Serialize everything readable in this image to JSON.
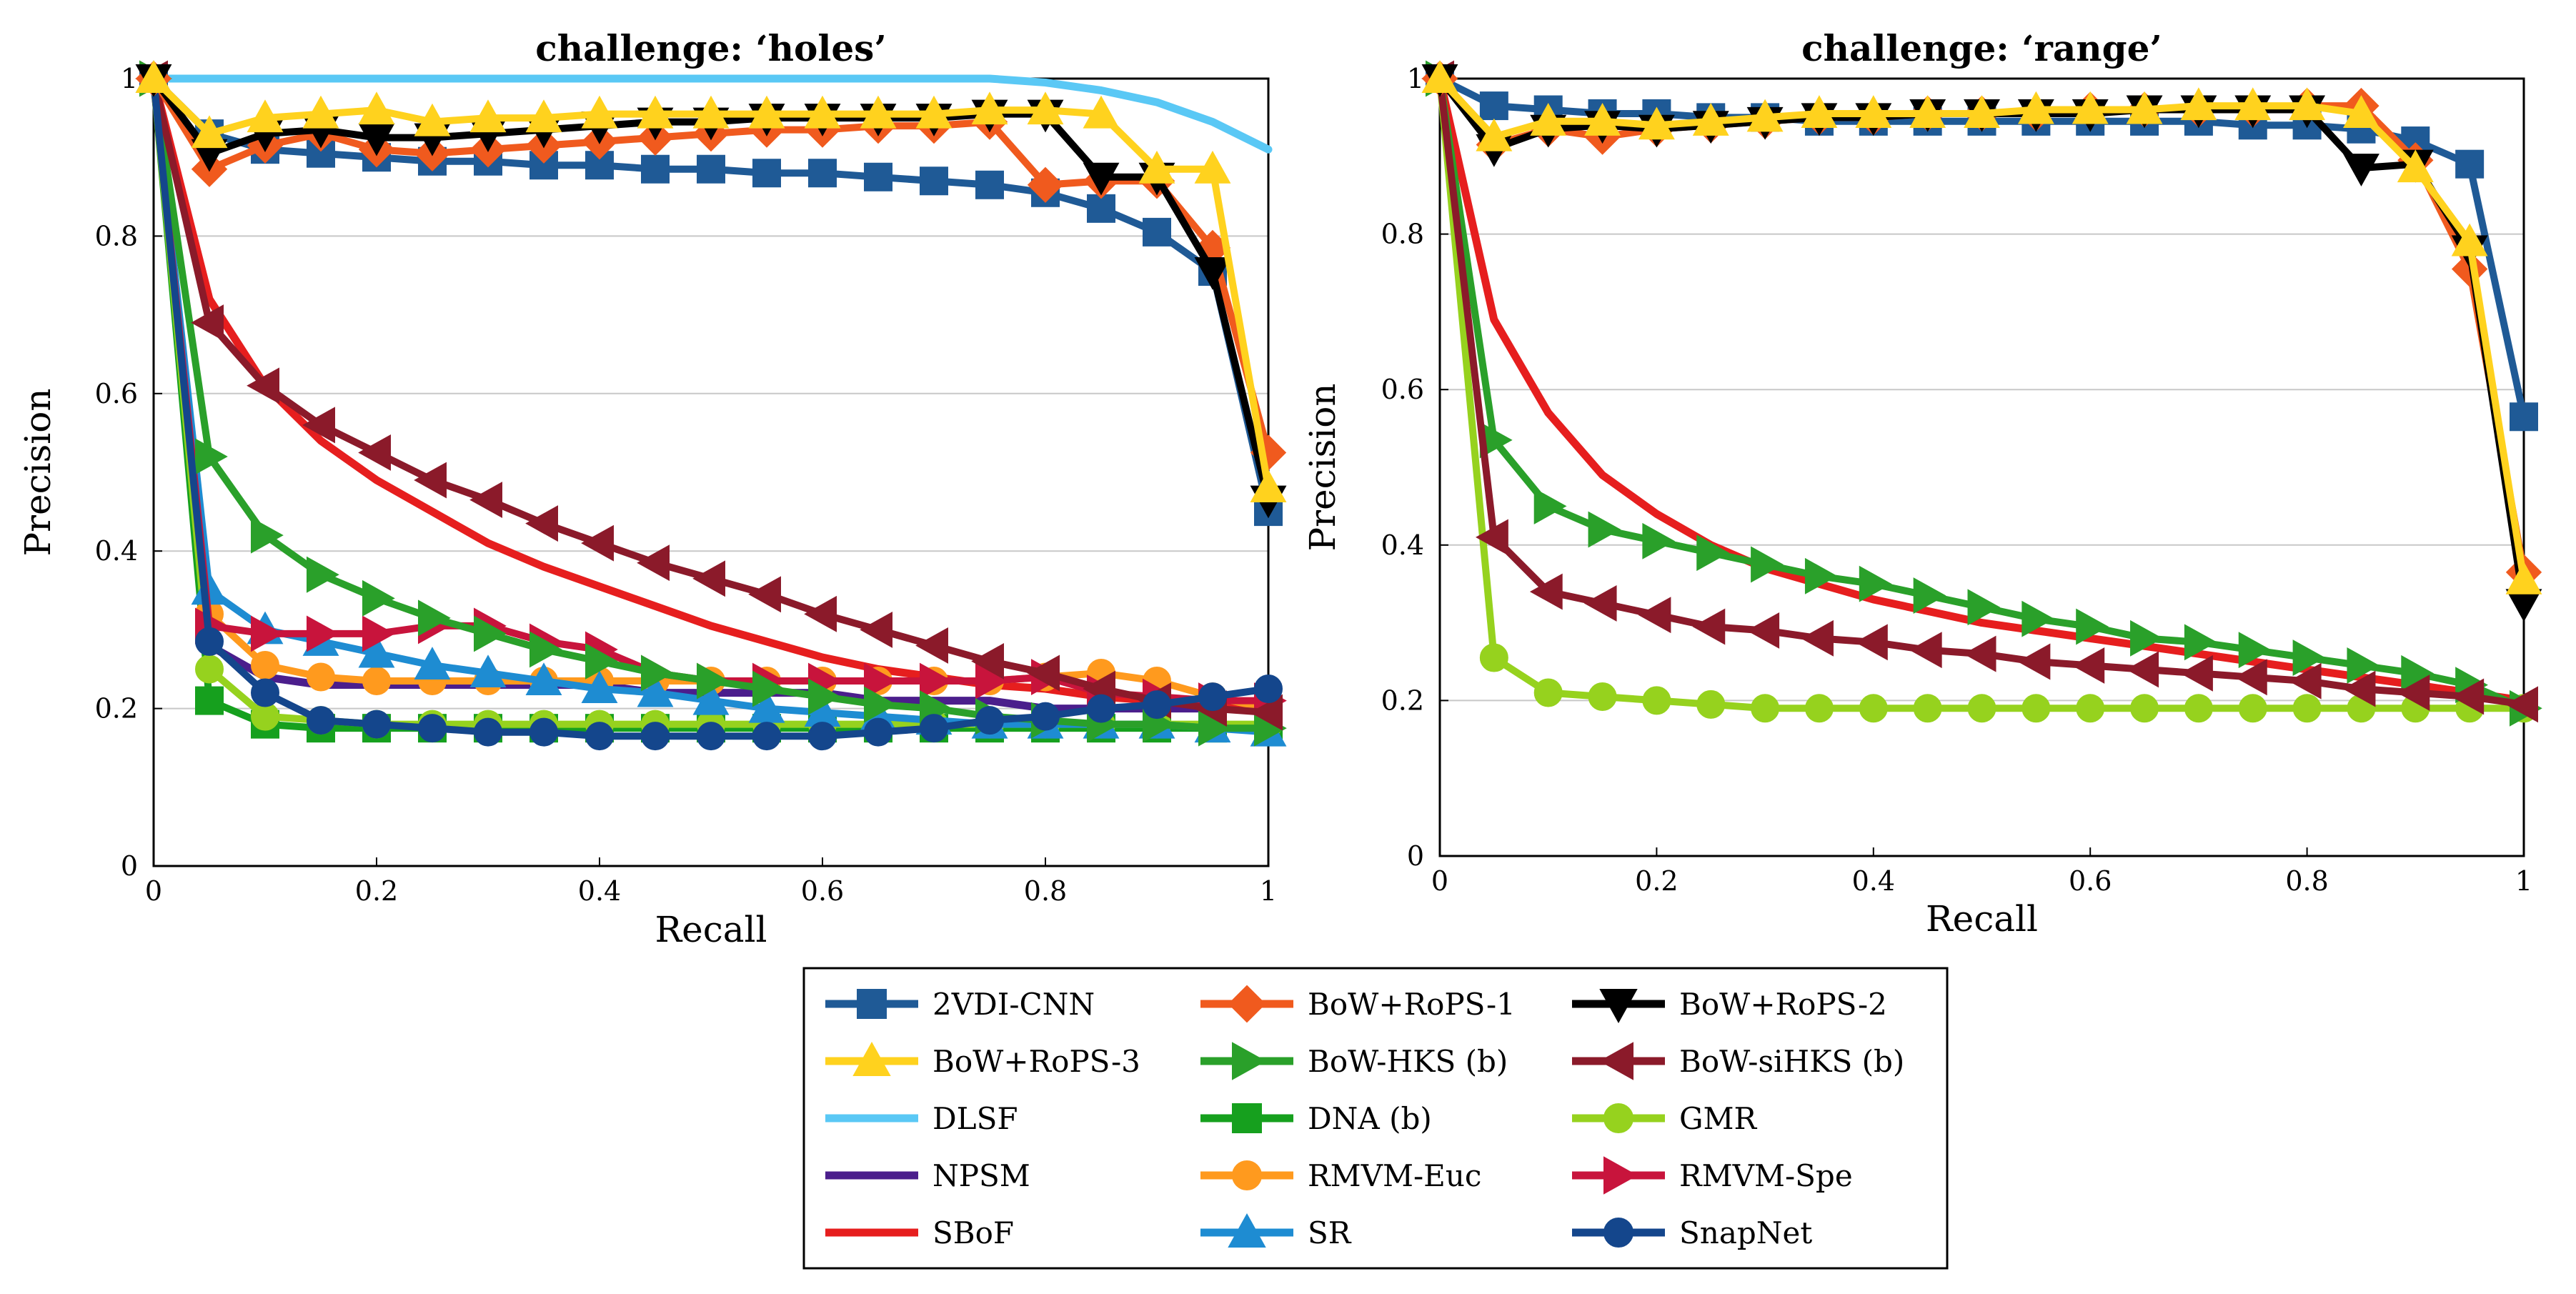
{
  "series_styles": [
    {
      "name": "2VDI-CNN",
      "color": "#1f5a96",
      "marker": "square"
    },
    {
      "name": "BoW+RoPS-1",
      "color": "#f05a1e",
      "marker": "diamond"
    },
    {
      "name": "BoW+RoPS-2",
      "color": "#000000",
      "marker": "triangle-down"
    },
    {
      "name": "BoW+RoPS-3",
      "color": "#ffd21e",
      "marker": "triangle-up"
    },
    {
      "name": "BoW-HKS (b)",
      "color": "#2aa02a",
      "marker": "triangle-right"
    },
    {
      "name": "BoW-siHKS (b)",
      "color": "#8b1a2a",
      "marker": "triangle-left"
    },
    {
      "name": "DLSF",
      "color": "#5ac8f5",
      "marker": "none"
    },
    {
      "name": "DNA (b)",
      "color": "#16a01e",
      "marker": "square"
    },
    {
      "name": "GMR",
      "color": "#96d21e",
      "marker": "circle"
    },
    {
      "name": "NPSM",
      "color": "#4b1e8c",
      "marker": "none"
    },
    {
      "name": "RMVM-Euc",
      "color": "#ff9a1e",
      "marker": "circle"
    },
    {
      "name": "RMVM-Spe",
      "color": "#c8143c",
      "marker": "triangle-right"
    },
    {
      "name": "SBoF",
      "color": "#e61e1e",
      "marker": "none"
    },
    {
      "name": "SR",
      "color": "#1e8cd2",
      "marker": "triangle-up"
    },
    {
      "name": "SnapNet",
      "color": "#14468c",
      "marker": "circle"
    }
  ],
  "chart_data": [
    {
      "type": "line",
      "title": "challenge: ‘holes’",
      "xlabel": "Recall",
      "ylabel": "Precision",
      "xlim": [
        0,
        1
      ],
      "ylim": [
        0,
        1
      ],
      "xticks": [
        "0",
        "0.2",
        "0.4",
        "0.6",
        "0.8",
        "1"
      ],
      "yticks": [
        "0",
        "0.2",
        "0.4",
        "0.6",
        "0.8",
        "1"
      ],
      "grid": "horizontal",
      "x": [
        0,
        0.05,
        0.1,
        0.15,
        0.2,
        0.25,
        0.3,
        0.35,
        0.4,
        0.45,
        0.5,
        0.55,
        0.6,
        0.65,
        0.7,
        0.75,
        0.8,
        0.85,
        0.9,
        0.95,
        1
      ],
      "series": [
        {
          "name": "DLSF",
          "values": [
            1,
            1,
            1,
            1,
            1,
            1,
            1,
            1,
            1,
            1,
            1,
            1,
            1,
            1,
            1,
            1,
            0.995,
            0.985,
            0.97,
            0.945,
            0.91
          ]
        },
        {
          "name": "NPSM",
          "values": [
            1,
            0.28,
            0.24,
            0.23,
            0.23,
            0.23,
            0.23,
            0.23,
            0.23,
            0.22,
            0.22,
            0.22,
            0.22,
            0.21,
            0.21,
            0.21,
            0.2,
            0.2,
            0.2,
            0.2,
            0.2
          ]
        },
        {
          "name": "SBoF",
          "values": [
            1,
            0.72,
            0.61,
            0.54,
            0.49,
            0.45,
            0.41,
            0.38,
            0.355,
            0.33,
            0.305,
            0.285,
            0.265,
            0.25,
            0.24,
            0.23,
            0.225,
            0.215,
            0.21,
            0.205,
            0.2
          ]
        },
        {
          "name": "DNA (b)",
          "values": [
            1,
            0.21,
            0.18,
            0.175,
            0.175,
            0.175,
            0.175,
            0.175,
            0.175,
            0.175,
            0.175,
            0.175,
            0.175,
            0.175,
            0.175,
            0.175,
            0.175,
            0.175,
            0.175,
            0.175,
            0.175
          ]
        },
        {
          "name": "GMR",
          "values": [
            1,
            0.25,
            0.19,
            0.185,
            0.18,
            0.18,
            0.18,
            0.18,
            0.18,
            0.18,
            0.18,
            0.18,
            0.18,
            0.18,
            0.18,
            0.18,
            0.18,
            0.18,
            0.18,
            0.18,
            0.18
          ]
        },
        {
          "name": "RMVM-Euc",
          "values": [
            1,
            0.32,
            0.255,
            0.24,
            0.235,
            0.235,
            0.235,
            0.235,
            0.235,
            0.235,
            0.235,
            0.235,
            0.235,
            0.235,
            0.235,
            0.235,
            0.24,
            0.245,
            0.235,
            0.215,
            0.2
          ]
        },
        {
          "name": "SR",
          "values": [
            1,
            0.35,
            0.3,
            0.285,
            0.27,
            0.255,
            0.245,
            0.235,
            0.225,
            0.22,
            0.21,
            0.2,
            0.195,
            0.19,
            0.185,
            0.18,
            0.18,
            0.18,
            0.18,
            0.175,
            0.17
          ]
        },
        {
          "name": "RMVM-Spe",
          "values": [
            1,
            0.305,
            0.295,
            0.295,
            0.295,
            0.305,
            0.305,
            0.285,
            0.275,
            0.245,
            0.235,
            0.235,
            0.235,
            0.235,
            0.235,
            0.235,
            0.24,
            0.22,
            0.215,
            0.21,
            0.21
          ]
        },
        {
          "name": "BoW-HKS (b)",
          "values": [
            1,
            0.52,
            0.42,
            0.37,
            0.34,
            0.315,
            0.295,
            0.275,
            0.26,
            0.245,
            0.235,
            0.225,
            0.215,
            0.205,
            0.2,
            0.19,
            0.185,
            0.18,
            0.18,
            0.175,
            0.175
          ]
        },
        {
          "name": "BoW-siHKS (b)",
          "values": [
            1,
            0.69,
            0.61,
            0.56,
            0.525,
            0.49,
            0.465,
            0.435,
            0.41,
            0.385,
            0.365,
            0.345,
            0.32,
            0.3,
            0.28,
            0.26,
            0.245,
            0.225,
            0.21,
            0.2,
            0.195
          ]
        },
        {
          "name": "SnapNet",
          "values": [
            1,
            0.285,
            0.22,
            0.185,
            0.18,
            0.175,
            0.17,
            0.17,
            0.165,
            0.165,
            0.165,
            0.165,
            0.165,
            0.17,
            0.175,
            0.185,
            0.19,
            0.2,
            0.205,
            0.215,
            0.225
          ]
        },
        {
          "name": "2VDI-CNN",
          "values": [
            1,
            0.93,
            0.91,
            0.905,
            0.9,
            0.895,
            0.895,
            0.89,
            0.89,
            0.885,
            0.885,
            0.88,
            0.88,
            0.875,
            0.87,
            0.865,
            0.855,
            0.835,
            0.805,
            0.755,
            0.45
          ]
        },
        {
          "name": "BoW+RoPS-1",
          "values": [
            1,
            0.885,
            0.915,
            0.93,
            0.91,
            0.905,
            0.91,
            0.915,
            0.92,
            0.925,
            0.93,
            0.935,
            0.935,
            0.94,
            0.94,
            0.945,
            0.865,
            0.87,
            0.87,
            0.785,
            0.525
          ]
        },
        {
          "name": "BoW+RoPS-2",
          "values": [
            1,
            0.905,
            0.93,
            0.935,
            0.925,
            0.925,
            0.93,
            0.935,
            0.94,
            0.945,
            0.945,
            0.95,
            0.95,
            0.95,
            0.95,
            0.955,
            0.955,
            0.875,
            0.875,
            0.755,
            0.465
          ]
        },
        {
          "name": "BoW+RoPS-3",
          "values": [
            1,
            0.93,
            0.95,
            0.955,
            0.96,
            0.945,
            0.95,
            0.95,
            0.955,
            0.955,
            0.955,
            0.955,
            0.955,
            0.955,
            0.955,
            0.96,
            0.96,
            0.955,
            0.885,
            0.885,
            0.48
          ]
        }
      ]
    },
    {
      "type": "line",
      "title": "challenge: ‘range’",
      "xlabel": "Recall",
      "ylabel": "Precision",
      "xlim": [
        0,
        1
      ],
      "ylim": [
        0,
        1
      ],
      "xticks": [
        "0",
        "0.2",
        "0.4",
        "0.6",
        "0.8",
        "1"
      ],
      "yticks": [
        "0",
        "0.2",
        "0.4",
        "0.6",
        "0.8",
        "1"
      ],
      "grid": "horizontal",
      "x": [
        0,
        0.05,
        0.1,
        0.15,
        0.2,
        0.25,
        0.3,
        0.35,
        0.4,
        0.45,
        0.5,
        0.55,
        0.6,
        0.65,
        0.7,
        0.75,
        0.8,
        0.85,
        0.9,
        0.95,
        1
      ],
      "series": [
        {
          "name": "SBoF",
          "values": [
            1,
            0.69,
            0.57,
            0.49,
            0.44,
            0.4,
            0.37,
            0.35,
            0.33,
            0.315,
            0.3,
            0.29,
            0.28,
            0.27,
            0.26,
            0.25,
            0.24,
            0.23,
            0.22,
            0.21,
            0.2
          ]
        },
        {
          "name": "GMR",
          "values": [
            1,
            0.255,
            0.21,
            0.205,
            0.2,
            0.195,
            0.19,
            0.19,
            0.19,
            0.19,
            0.19,
            0.19,
            0.19,
            0.19,
            0.19,
            0.19,
            0.19,
            0.19,
            0.19,
            0.19,
            0.19
          ]
        },
        {
          "name": "BoW-HKS (b)",
          "values": [
            1,
            0.535,
            0.45,
            0.42,
            0.405,
            0.39,
            0.375,
            0.36,
            0.35,
            0.335,
            0.32,
            0.305,
            0.295,
            0.28,
            0.275,
            0.265,
            0.255,
            0.245,
            0.235,
            0.22,
            0.19
          ]
        },
        {
          "name": "BoW-siHKS (b)",
          "values": [
            1,
            0.41,
            0.34,
            0.325,
            0.31,
            0.295,
            0.29,
            0.28,
            0.275,
            0.265,
            0.26,
            0.25,
            0.245,
            0.24,
            0.235,
            0.23,
            0.225,
            0.215,
            0.21,
            0.205,
            0.195
          ]
        },
        {
          "name": "2VDI-CNN",
          "values": [
            1,
            0.965,
            0.96,
            0.955,
            0.955,
            0.95,
            0.95,
            0.945,
            0.945,
            0.945,
            0.945,
            0.945,
            0.945,
            0.945,
            0.945,
            0.94,
            0.94,
            0.935,
            0.92,
            0.89,
            0.565
          ]
        },
        {
          "name": "BoW+RoPS-1",
          "values": [
            1,
            0.915,
            0.935,
            0.925,
            0.935,
            0.94,
            0.945,
            0.95,
            0.95,
            0.955,
            0.955,
            0.955,
            0.96,
            0.96,
            0.96,
            0.96,
            0.965,
            0.965,
            0.895,
            0.755,
            0.365
          ]
        },
        {
          "name": "BoW+RoPS-2",
          "values": [
            1,
            0.91,
            0.935,
            0.94,
            0.935,
            0.94,
            0.945,
            0.95,
            0.95,
            0.955,
            0.955,
            0.955,
            0.955,
            0.96,
            0.96,
            0.96,
            0.96,
            0.885,
            0.89,
            0.78,
            0.325
          ]
        },
        {
          "name": "BoW+RoPS-3",
          "values": [
            1,
            0.925,
            0.945,
            0.945,
            0.94,
            0.945,
            0.95,
            0.955,
            0.955,
            0.955,
            0.955,
            0.96,
            0.96,
            0.96,
            0.965,
            0.965,
            0.965,
            0.955,
            0.885,
            0.79,
            0.355
          ]
        }
      ]
    }
  ]
}
